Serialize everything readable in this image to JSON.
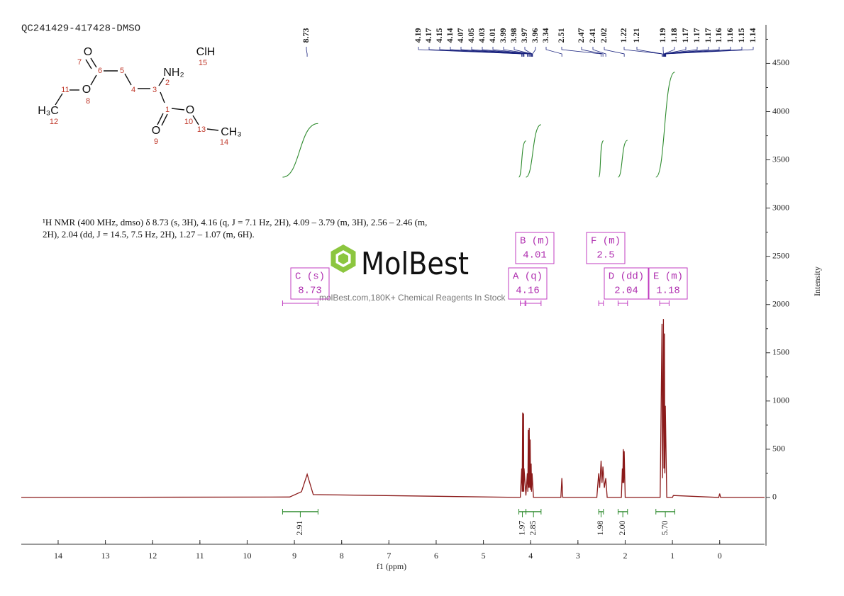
{
  "sample": "QC241429-417428-DMSO",
  "description": "¹H NMR (400 MHz, dmso) δ 8.73 (s, 3H), 4.16 (q, J = 7.1 Hz, 2H), 4.09 – 3.79 (m, 3H), 2.56 – 2.46 (m, 2H), 2.04 (dd, J = 14.5, 7.5 Hz, 2H), 1.27 – 1.07 (m, 6H).",
  "watermark": {
    "brand": "MolBest",
    "tagline": "molBest.com,180K+ Chemical Reagents In Stock"
  },
  "structure": {
    "labels": [
      "O",
      "7",
      "6",
      "5",
      "NH₂",
      "2",
      "3",
      "4",
      "ClH",
      "15",
      "11",
      "O",
      "8",
      "H₃C",
      "12",
      "1",
      "O",
      "10",
      "13",
      "CH₃",
      "14",
      "O",
      "9"
    ]
  },
  "chart_data": {
    "type": "line",
    "xlabel": "f1 (ppm)",
    "ylabel": "Intensity",
    "xlim": [
      14.78,
      -0.95
    ],
    "ylim": [
      -500,
      4900
    ],
    "xticks": [
      14,
      13,
      12,
      11,
      10,
      9,
      8,
      7,
      6,
      5,
      4,
      3,
      2,
      1,
      0
    ],
    "yticks": [
      0,
      500,
      1000,
      1500,
      2000,
      2500,
      3000,
      3500,
      4000,
      4500
    ],
    "series": [
      {
        "name": "1H",
        "color": "#8b1a1a",
        "x": [
          14.78,
          9.1,
          8.85,
          8.73,
          8.6,
          4.22,
          4.19,
          4.18,
          4.17,
          4.16,
          4.15,
          4.145,
          4.14,
          4.1,
          4.07,
          4.06,
          4.05,
          4.04,
          4.03,
          4.02,
          4.01,
          4.0,
          3.99,
          3.98,
          3.97,
          3.94,
          3.36,
          3.34,
          3.32,
          2.6,
          2.56,
          2.54,
          2.51,
          2.49,
          2.47,
          2.44,
          2.41,
          2.38,
          2.08,
          2.06,
          2.05,
          2.04,
          2.03,
          2.02,
          2.0,
          1.26,
          1.22,
          1.21,
          1.2,
          1.19,
          1.18,
          1.17,
          1.16,
          1.15,
          1.12,
          1.0,
          0.98,
          0.02,
          0.0,
          -0.02,
          -0.95
        ],
        "values": [
          0,
          5,
          60,
          240,
          30,
          0,
          300,
          60,
          880,
          60,
          870,
          60,
          300,
          20,
          250,
          60,
          700,
          100,
          720,
          100,
          600,
          80,
          350,
          60,
          250,
          0,
          0,
          200,
          0,
          0,
          250,
          100,
          380,
          150,
          320,
          100,
          200,
          0,
          0,
          300,
          150,
          500,
          150,
          480,
          0,
          0,
          1800,
          200,
          950,
          1850,
          300,
          1700,
          250,
          950,
          0,
          0,
          20,
          0,
          40,
          0,
          0
        ]
      }
    ],
    "peak_labels": [
      8.73,
      4.19,
      4.17,
      4.15,
      4.14,
      4.07,
      4.05,
      4.03,
      4.01,
      3.99,
      3.98,
      3.97,
      3.96,
      3.34,
      2.51,
      2.47,
      2.41,
      2.02,
      1.22,
      1.21,
      1.19,
      1.18,
      1.17,
      1.17,
      1.17,
      1.16,
      1.16,
      1.15,
      1.14
    ],
    "integrals": [
      {
        "range": [
          9.25,
          8.5
        ],
        "value": 2.91
      },
      {
        "range": [
          4.25,
          4.1
        ],
        "value": 1.97
      },
      {
        "range": [
          4.1,
          3.78
        ],
        "value": 2.85
      },
      {
        "range": [
          2.56,
          2.46
        ],
        "value": 1.98
      },
      {
        "range": [
          2.15,
          1.95
        ],
        "value": {
          "value": 2,
          "label": "2.00"
        }
      },
      {
        "range": [
          1.35,
          0.95
        ],
        "value": {
          "value": 5.7,
          "label": "5.70"
        }
      }
    ],
    "multiplets": [
      {
        "label": "C (s)",
        "shift": 8.73,
        "range": [
          9.25,
          8.5
        ]
      },
      {
        "label": "B (m)",
        "shift": 4.01,
        "range": [
          4.1,
          3.78
        ]
      },
      {
        "label": "A (q)",
        "shift": 4.16,
        "range": [
          4.22,
          4.12
        ]
      },
      {
        "label": "F (m)",
        "shift": 2.5,
        "range": [
          2.56,
          2.46
        ]
      },
      {
        "label": "D (dd)",
        "shift": 2.04,
        "range": [
          2.15,
          1.95
        ]
      },
      {
        "label": "E (m)",
        "shift": 1.18,
        "range": [
          1.27,
          1.07
        ]
      }
    ]
  }
}
